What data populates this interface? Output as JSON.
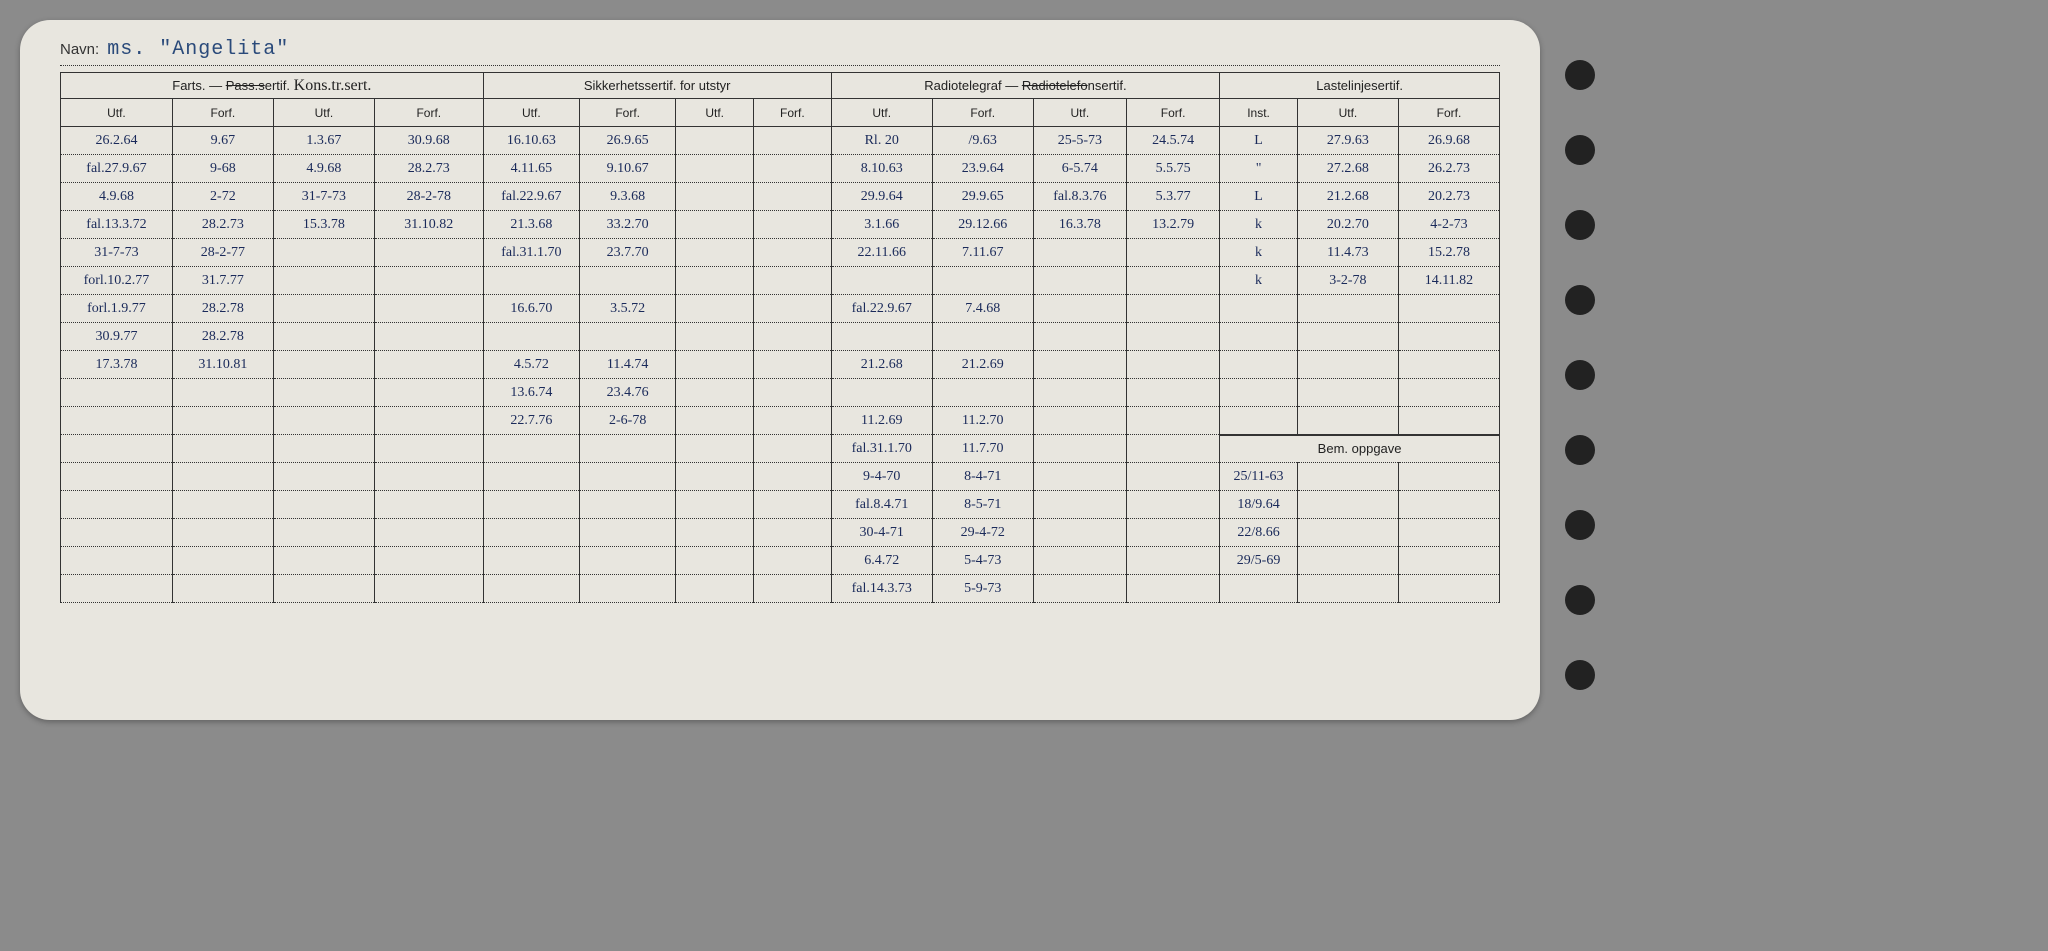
{
  "name_label": "Navn:",
  "name_value": "ms. \"Angelita\"",
  "headers": {
    "group1": "Farts. — ",
    "group1_strike": "Pass.s",
    "group1_after": "ertif.",
    "group1_script": "Kons.tr.sert.",
    "group2": "Sikkerhetssertif. for utstyr",
    "group3": "Radiotelegraf — ",
    "group3_strike": "Radiotelefo",
    "group3_after": "nsertif.",
    "group4": "Lastelinjesertif.",
    "sub": [
      "Utf.",
      "Forf.",
      "Utf.",
      "Forf.",
      "Utf.",
      "Forf.",
      "Utf.",
      "Forf.",
      "Utf.",
      "Forf.",
      "Utf.",
      "Forf.",
      "Inst.",
      "Utf.",
      "Forf."
    ],
    "bem": "Bem. oppgave"
  },
  "rows": [
    [
      "26.2.64",
      "9.67",
      "1.3.67",
      "30.9.68",
      "16.10.63",
      "26.9.65",
      "",
      "",
      "Rl. 20",
      "/9.63",
      "25-5-73",
      "24.5.74",
      "L",
      "27.9.63",
      "26.9.68"
    ],
    [
      "fal.27.9.67",
      "9-68",
      "4.9.68",
      "28.2.73",
      "4.11.65",
      "9.10.67",
      "",
      "",
      "8.10.63",
      "23.9.64",
      "6-5.74",
      "5.5.75",
      "\"",
      "27.2.68",
      "26.2.73"
    ],
    [
      "4.9.68",
      "2-72",
      "31-7-73",
      "28-2-78",
      "fal.22.9.67",
      "9.3.68",
      "",
      "",
      "29.9.64",
      "29.9.65",
      "fal.8.3.76",
      "5.3.77",
      "L",
      "21.2.68",
      "20.2.73"
    ],
    [
      "fal.13.3.72",
      "28.2.73",
      "15.3.78",
      "31.10.82",
      "21.3.68",
      "33.2.70",
      "",
      "",
      "3.1.66",
      "29.12.66",
      "16.3.78",
      "13.2.79",
      "k",
      "20.2.70",
      "4-2-73"
    ],
    [
      "31-7-73",
      "28-2-77",
      "",
      "",
      "fal.31.1.70",
      "23.7.70",
      "",
      "",
      "22.11.66",
      "7.11.67",
      "",
      "",
      "k",
      "11.4.73",
      "15.2.78"
    ],
    [
      "forl.10.2.77",
      "31.7.77",
      "",
      "",
      "",
      "",
      "",
      "",
      "",
      "",
      "",
      "",
      "k",
      "3-2-78",
      "14.11.82"
    ],
    [
      "forl.1.9.77",
      "28.2.78",
      "",
      "",
      "16.6.70",
      "3.5.72",
      "",
      "",
      "fal.22.9.67",
      "7.4.68",
      "",
      "",
      "",
      "",
      ""
    ],
    [
      "30.9.77",
      "28.2.78",
      "",
      "",
      "",
      "",
      "",
      "",
      "",
      "",
      "",
      "",
      "",
      "",
      ""
    ],
    [
      "17.3.78",
      "31.10.81",
      "",
      "",
      "4.5.72",
      "11.4.74",
      "",
      "",
      "21.2.68",
      "21.2.69",
      "",
      "",
      "",
      "",
      ""
    ],
    [
      "",
      "",
      "",
      "",
      "13.6.74",
      "23.4.76",
      "",
      "",
      "",
      "",
      "",
      "",
      "",
      "",
      ""
    ],
    [
      "",
      "",
      "",
      "",
      "22.7.76",
      "2-6-78",
      "",
      "",
      "11.2.69",
      "11.2.70",
      "",
      "",
      "",
      "",
      ""
    ]
  ],
  "bem_rows": [
    [
      "",
      "",
      "",
      "",
      "",
      "",
      "",
      "",
      "fal.31.1.70",
      "11.7.70",
      "",
      "",
      "",
      "",
      ""
    ],
    [
      "",
      "",
      "",
      "",
      "",
      "",
      "",
      "",
      "9-4-70",
      "8-4-71",
      "",
      "",
      "25/11-63",
      "",
      ""
    ],
    [
      "",
      "",
      "",
      "",
      "",
      "",
      "",
      "",
      "fal.8.4.71",
      "8-5-71",
      "",
      "",
      "18/9.64",
      "",
      ""
    ],
    [
      "",
      "",
      "",
      "",
      "",
      "",
      "",
      "",
      "30-4-71",
      "29-4-72",
      "",
      "",
      "22/8.66",
      "",
      ""
    ],
    [
      "",
      "",
      "",
      "",
      "",
      "",
      "",
      "",
      "6.4.72",
      "5-4-73",
      "",
      "",
      "29/5-69",
      "",
      ""
    ],
    [
      "",
      "",
      "",
      "",
      "",
      "",
      "",
      "",
      "fal.14.3.73",
      "5-9-73",
      "",
      "",
      "",
      "",
      ""
    ]
  ],
  "colors": {
    "card_bg": "#e8e6df",
    "page_bg": "#8b8b8b",
    "ink_blue": "#1a2a5a",
    "ink_dark": "#222",
    "type_blue": "#2a4a7a"
  }
}
